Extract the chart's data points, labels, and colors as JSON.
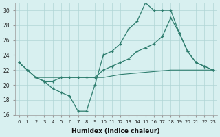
{
  "xlabel": "Humidex (Indice chaleur)",
  "xlim": [
    -0.5,
    23.5
  ],
  "ylim": [
    16,
    31
  ],
  "yticks": [
    16,
    18,
    20,
    22,
    24,
    26,
    28,
    30
  ],
  "xticks": [
    0,
    1,
    2,
    3,
    4,
    5,
    6,
    7,
    8,
    9,
    10,
    11,
    12,
    13,
    14,
    15,
    16,
    17,
    18,
    19,
    20,
    21,
    22,
    23
  ],
  "color": "#2E7D6E",
  "background": "#D8F0F0",
  "grid_color": "#B0D5D5",
  "line1_x": [
    0,
    1,
    2,
    3,
    4,
    5,
    6,
    7,
    8,
    9,
    10,
    11,
    12,
    13,
    14,
    15,
    16,
    17,
    18,
    19,
    20,
    21,
    22,
    23
  ],
  "line1_y": [
    23,
    22,
    21,
    21,
    21,
    21,
    21,
    21,
    21,
    21,
    21,
    21.2,
    21.4,
    21.5,
    21.6,
    21.7,
    21.8,
    21.9,
    22,
    22,
    22,
    22,
    22,
    22
  ],
  "line2_x": [
    0,
    1,
    2,
    3,
    4,
    5,
    6,
    7,
    8,
    9,
    10,
    11,
    12,
    13,
    14,
    15,
    16,
    17,
    18,
    19,
    20,
    21,
    22,
    23
  ],
  "line2_y": [
    23,
    22,
    21,
    20.5,
    20.5,
    21,
    21,
    21,
    21,
    21,
    22,
    22.5,
    23,
    23.5,
    24.5,
    25,
    25.5,
    26.5,
    29,
    27,
    24.5,
    23,
    22.5,
    22
  ],
  "line3_x": [
    0,
    1,
    2,
    3,
    4,
    5,
    6,
    7,
    8,
    9,
    10,
    11,
    12,
    13,
    14,
    15,
    16,
    17,
    18,
    19,
    20,
    21,
    22,
    23
  ],
  "line3_y": [
    23,
    22,
    21,
    20.5,
    19.5,
    19,
    18.5,
    16.5,
    16.5,
    20,
    24,
    24.5,
    25.5,
    27.5,
    28.5,
    31,
    30,
    30,
    30,
    27,
    24.5,
    23,
    22.5,
    22
  ]
}
